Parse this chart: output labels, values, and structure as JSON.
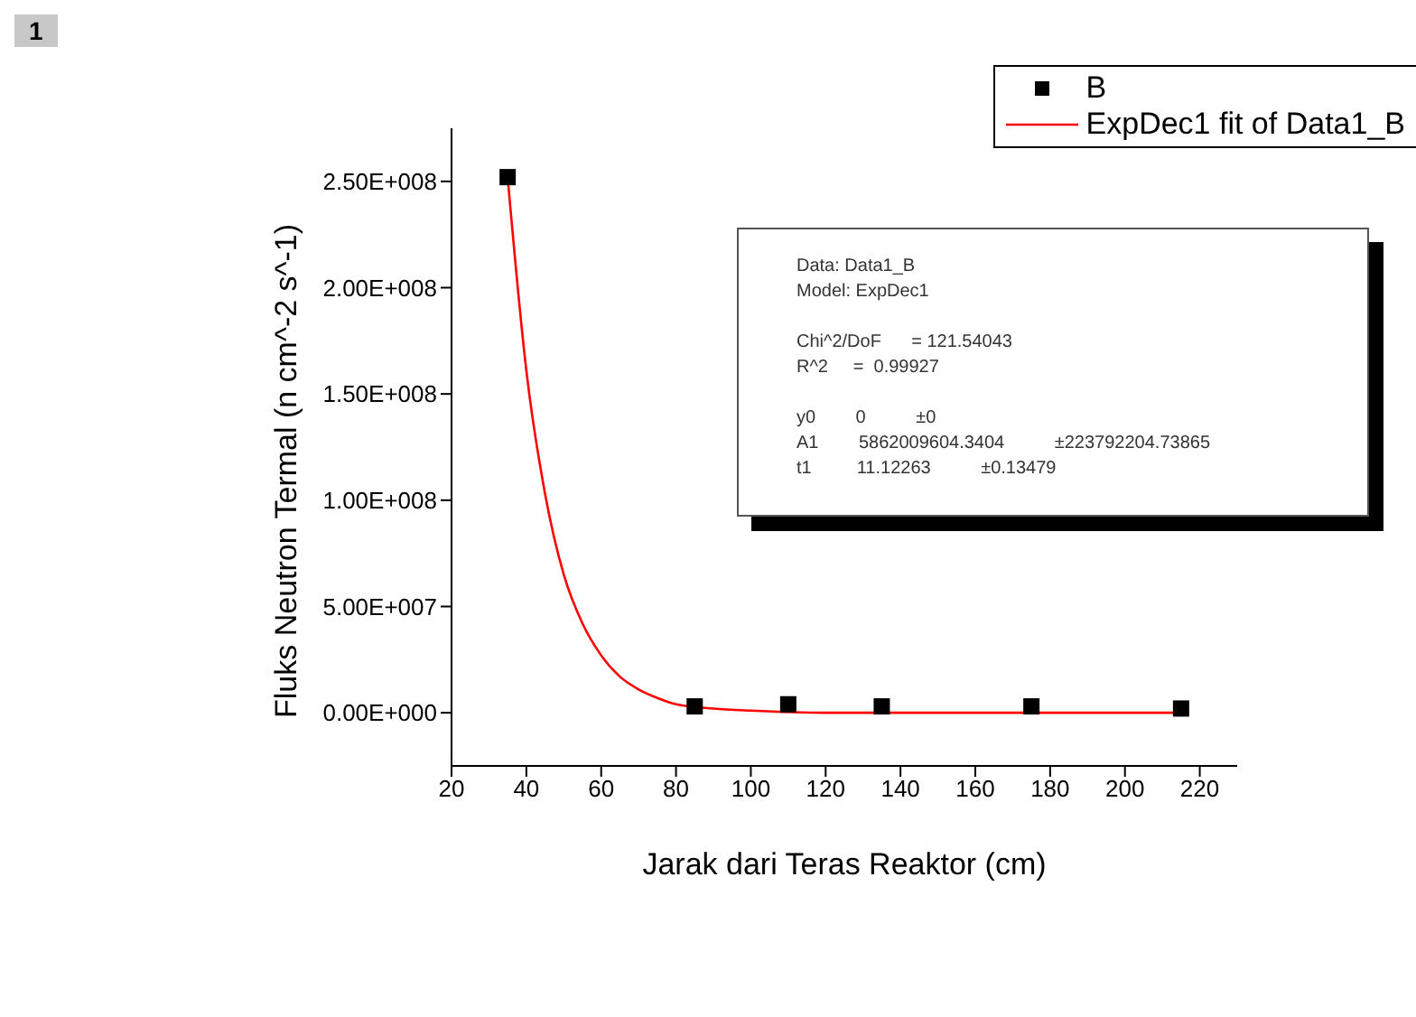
{
  "chart_data": {
    "type": "scatter",
    "xlabel": "Jarak dari Teras Reaktor (cm)",
    "ylabel": "Fluks Neutron Termal (n cm^-2 s^-1)",
    "series": [
      {
        "name": "B",
        "color": "#000000",
        "marker": "square",
        "x": [
          35,
          85,
          110,
          135,
          175,
          215
        ],
        "values": [
          252000000,
          3000000,
          4000000,
          3000000,
          3000000,
          2000000
        ]
      },
      {
        "name": "ExpDec1 fit of Data1_B",
        "type": "line",
        "color": "#ff0000",
        "marker": "none",
        "line_style": "solid",
        "x": [
          35,
          40,
          45,
          50,
          55,
          60,
          65,
          70,
          75,
          80,
          90,
          100,
          120,
          150,
          215
        ],
        "values": [
          252000000,
          161000000,
          103000000,
          65000000,
          42000000,
          27000000,
          17000000,
          11000000,
          7000000,
          4000000,
          2000000,
          1000000,
          0,
          0,
          0
        ]
      }
    ],
    "xlim": [
      20,
      230
    ],
    "xticks": [
      20,
      40,
      60,
      80,
      100,
      120,
      140,
      160,
      180,
      200,
      220
    ],
    "ylim": [
      -25000000,
      275000000
    ],
    "yticks": [
      {
        "value": 0,
        "label": "0.00E+000"
      },
      {
        "value": 50000000,
        "label": "5.00E+007"
      },
      {
        "value": 100000000,
        "label": "1.00E+008"
      },
      {
        "value": 150000000,
        "label": "1.50E+008"
      },
      {
        "value": 200000000,
        "label": "2.00E+008"
      },
      {
        "value": 250000000,
        "label": "2.50E+008"
      }
    ],
    "legend": "top right",
    "grid": false,
    "annotations": [
      "1",
      "Data: Data1_B",
      "Model: ExpDec1",
      "Chi^2/DoF      = 121.54043",
      "R^2     =  0.99927",
      "y0        0          ±0",
      "A1        5862009604.3404          ±223792204.73865",
      "t1         11.12263          ±0.13479"
    ]
  }
}
